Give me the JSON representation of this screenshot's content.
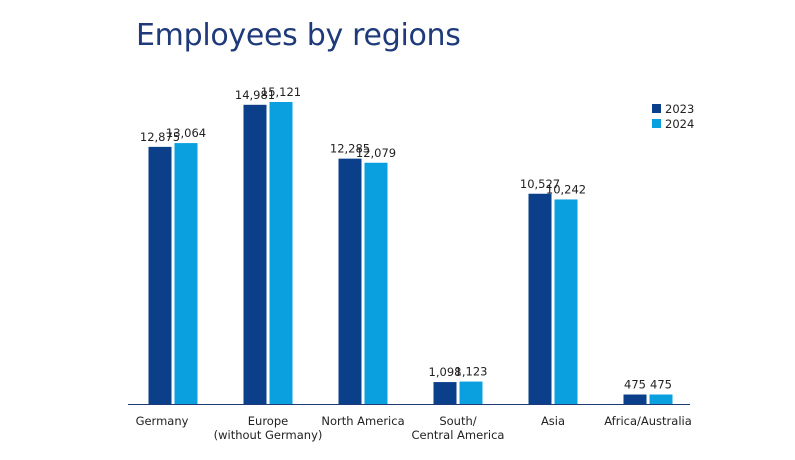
{
  "chart_data": {
    "type": "bar",
    "title": "Employees by regions",
    "xlabel": "",
    "ylabel": "",
    "categories": [
      [
        "Germany"
      ],
      [
        "Europe",
        "(without Germany)"
      ],
      [
        "North America"
      ],
      [
        "South/",
        "Central America"
      ],
      [
        "Asia"
      ],
      [
        "Africa/Australia"
      ]
    ],
    "series": [
      {
        "name": "2023",
        "color": "#0b3f8a",
        "values": [
          12875,
          14981,
          12285,
          1098,
          10527,
          475
        ],
        "labels": [
          "12,875",
          "14,981",
          "12,285",
          "1,098",
          "10,527",
          "475"
        ]
      },
      {
        "name": "2024",
        "color": "#0aa0e0",
        "values": [
          13064,
          15121,
          12079,
          1123,
          10242,
          475
        ],
        "labels": [
          "13,064",
          "15,121",
          "12,079",
          "1,123",
          "10,242",
          "475"
        ]
      }
    ],
    "ylim": [
      0,
      15121
    ],
    "grid": false,
    "legend_position": "top-right",
    "axis_color": "#1f3a7a"
  }
}
